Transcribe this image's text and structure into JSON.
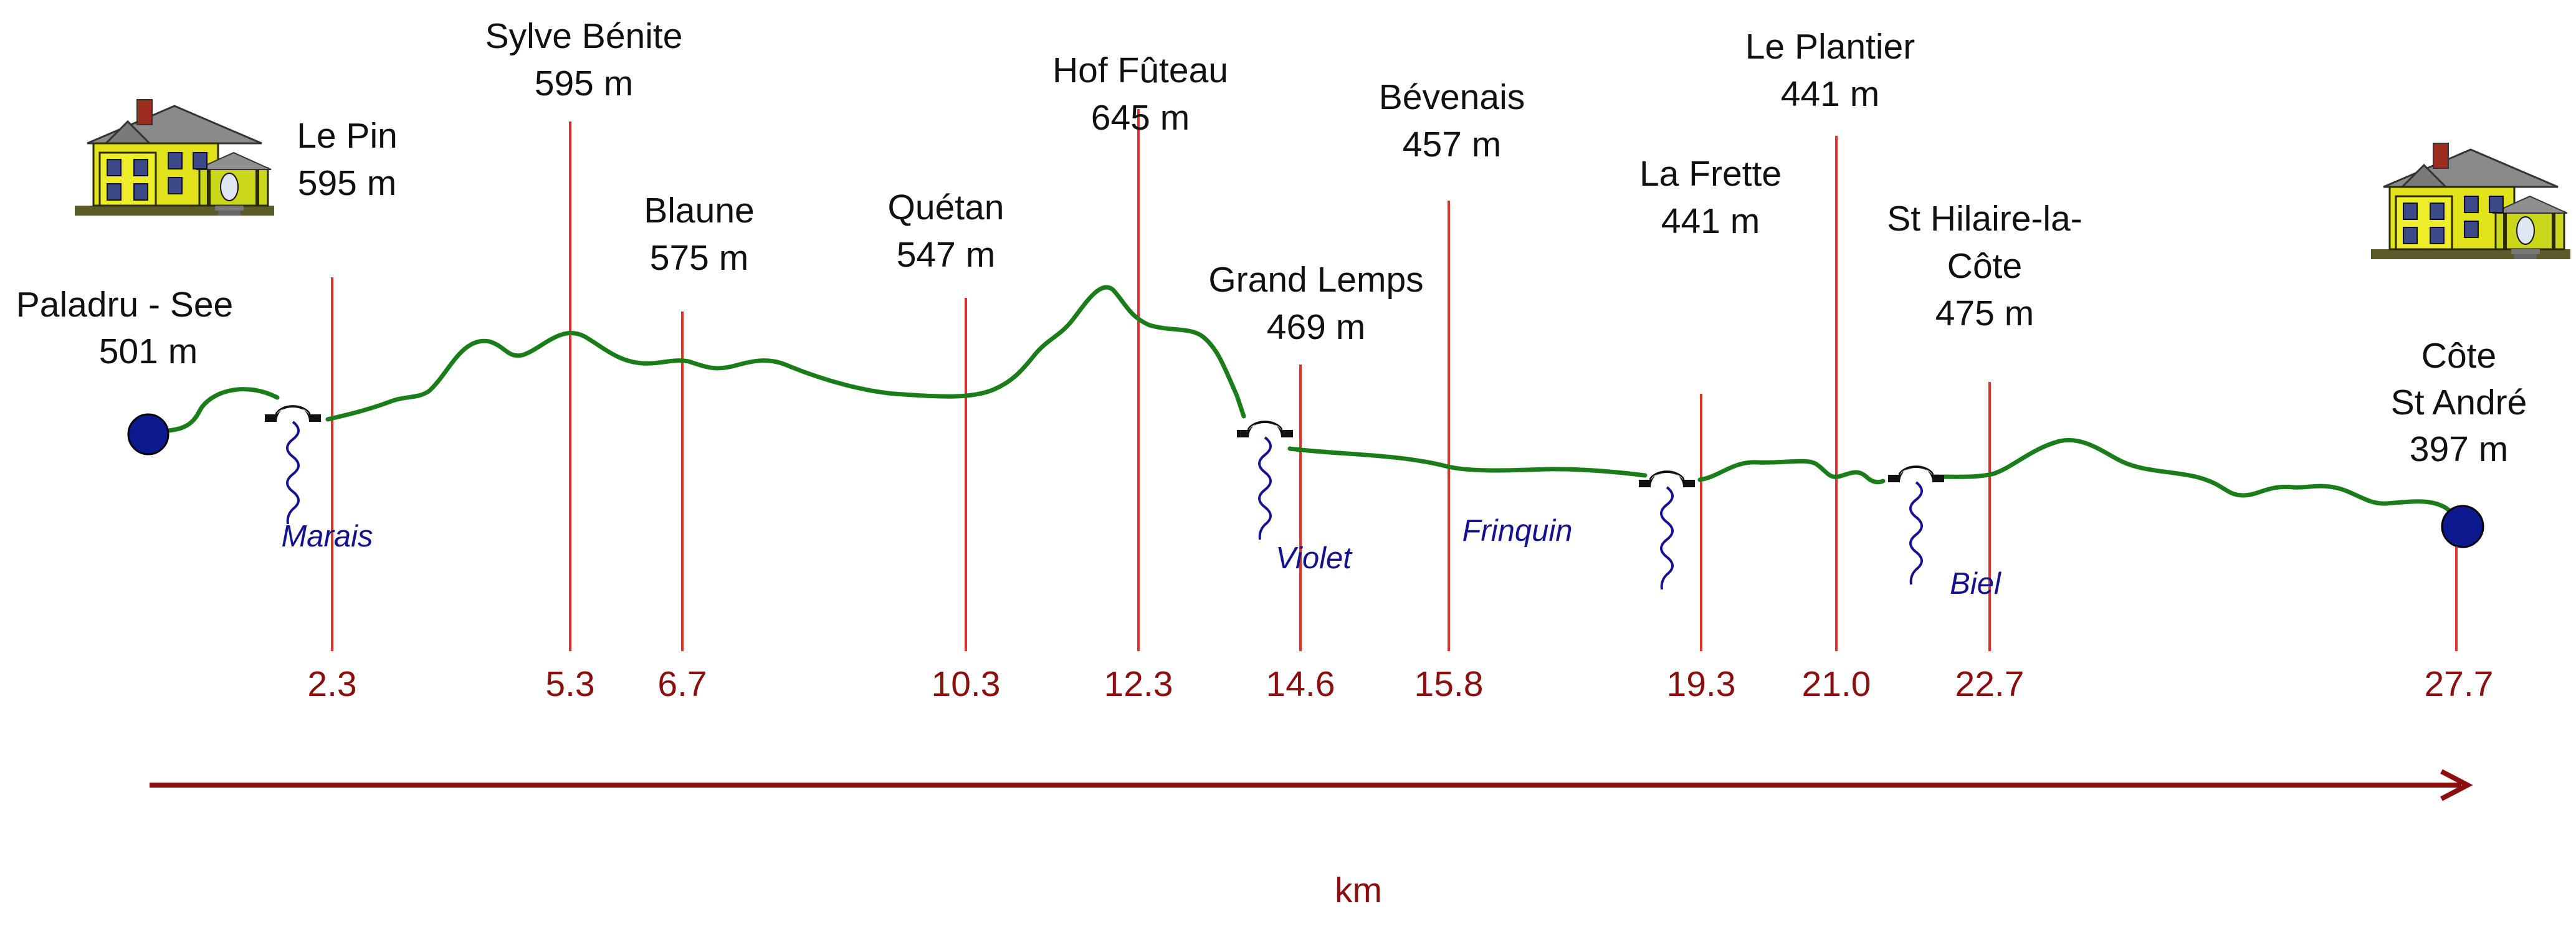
{
  "colors": {
    "profile": "#1a7d1a",
    "marker_line": "#e0322a",
    "km_label": "#8b0f0f",
    "axis": "#8b0f0f",
    "endpoint": "#0d1a8f",
    "stream": "#16128f",
    "text": "#111111"
  },
  "start": {
    "name": "Paladru - See",
    "altitude": "501 m",
    "icon": "house-icon",
    "marker": "endpoint-dot"
  },
  "end": {
    "name_line1": "Côte",
    "name_line2": "St André",
    "altitude": "397 m",
    "km": "27.7",
    "icon": "house-icon",
    "marker": "endpoint-dot"
  },
  "places": [
    {
      "lines": [
        "Le Pin"
      ],
      "altitude": "595 m",
      "km": "2.3"
    },
    {
      "lines": [
        "Sylve Bénite"
      ],
      "altitude": "595 m",
      "km": "5.3"
    },
    {
      "lines": [
        "Blaune"
      ],
      "altitude": "575 m",
      "km": "6.7"
    },
    {
      "lines": [
        "Quétan"
      ],
      "altitude": "547 m",
      "km": "10.3"
    },
    {
      "lines": [
        "Hof Fûteau"
      ],
      "altitude": "645 m",
      "km": "12.3"
    },
    {
      "lines": [
        "Grand Lemps"
      ],
      "altitude": "469 m",
      "km": "14.6"
    },
    {
      "lines": [
        "Bévenais"
      ],
      "altitude": "457 m",
      "km": "15.8"
    },
    {
      "lines": [
        "La Frette"
      ],
      "altitude": "441 m",
      "km": "19.3"
    },
    {
      "lines": [
        "Le Plantier"
      ],
      "altitude": "441 m",
      "km": "21.0"
    },
    {
      "lines": [
        "St Hilaire-la-",
        "Côte"
      ],
      "altitude": "475 m",
      "km": "22.7"
    }
  ],
  "streams": [
    {
      "name": "Marais",
      "icon": "bridge-icon"
    },
    {
      "name": "Violet",
      "icon": "bridge-icon"
    },
    {
      "name": "Frinquin",
      "icon": ""
    },
    {
      "name": "",
      "icon": "bridge-icon"
    },
    {
      "name": "Biel",
      "icon": "bridge-icon"
    }
  ],
  "axis": {
    "label": "km",
    "icon": "arrow-right-icon"
  }
}
